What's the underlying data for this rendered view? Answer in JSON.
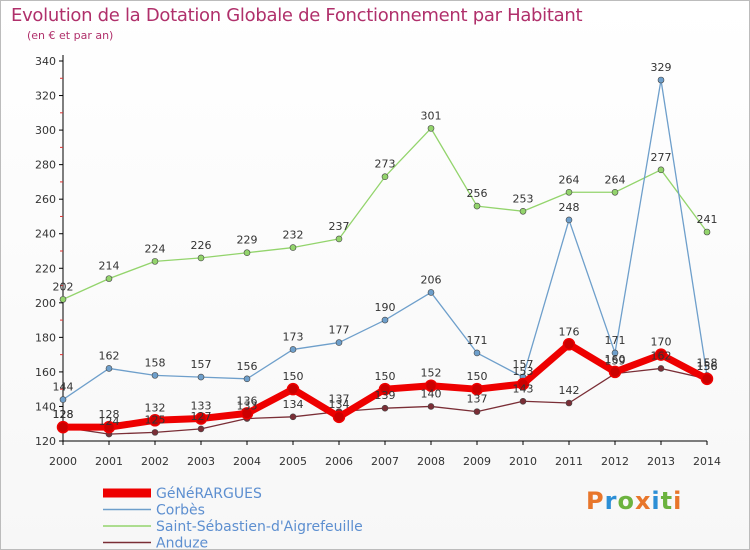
{
  "header": {
    "title": "Evolution de la Dotation Globale de Fonctionnement par Habitant",
    "subtitle": "(en € et par an)"
  },
  "logo": {
    "text": "Proxiti",
    "colors": [
      "#e8762b",
      "#2c8fd6",
      "#6cb33f",
      "#e8762b",
      "#2c8fd6",
      "#6cb33f",
      "#e8762b"
    ]
  },
  "chart_data": {
    "type": "line",
    "x": [
      2000,
      2001,
      2002,
      2003,
      2004,
      2005,
      2006,
      2007,
      2008,
      2009,
      2010,
      2011,
      2012,
      2013,
      2014
    ],
    "ylim": [
      120,
      340
    ],
    "yticks": [
      120,
      140,
      160,
      180,
      200,
      220,
      240,
      260,
      280,
      300,
      320,
      340
    ],
    "grid": false,
    "legend_position": "bottom-left",
    "series": [
      {
        "name": "Saint-Sébastien-d'Aigrefeuille",
        "color": "#93d46c",
        "width": 1.3,
        "values": [
          202,
          214,
          224,
          226,
          229,
          232,
          237,
          273,
          301,
          256,
          253,
          264,
          264,
          277,
          241
        ]
      },
      {
        "name": "Corbès",
        "color": "#6e9fcb",
        "width": 1.3,
        "values": [
          144,
          162,
          158,
          157,
          156,
          173,
          177,
          190,
          206,
          171,
          157,
          248,
          171,
          329,
          158
        ]
      },
      {
        "name": "Anduze",
        "color": "#7a2e36",
        "width": 1.3,
        "values": [
          128,
          124,
          125,
          127,
          133,
          134,
          137,
          139,
          140,
          137,
          143,
          142,
          159,
          162,
          156
        ]
      },
      {
        "name": "GéNéRARGUES",
        "color": "#ee0000",
        "width": 7,
        "values": [
          128,
          128,
          132,
          133,
          136,
          150,
          134,
          150,
          152,
          150,
          153,
          176,
          160,
          170,
          156
        ]
      }
    ],
    "legend_order": [
      "GéNéRARGUES",
      "Corbès",
      "Saint-Sébastien-d'Aigrefeuille",
      "Anduze"
    ]
  }
}
